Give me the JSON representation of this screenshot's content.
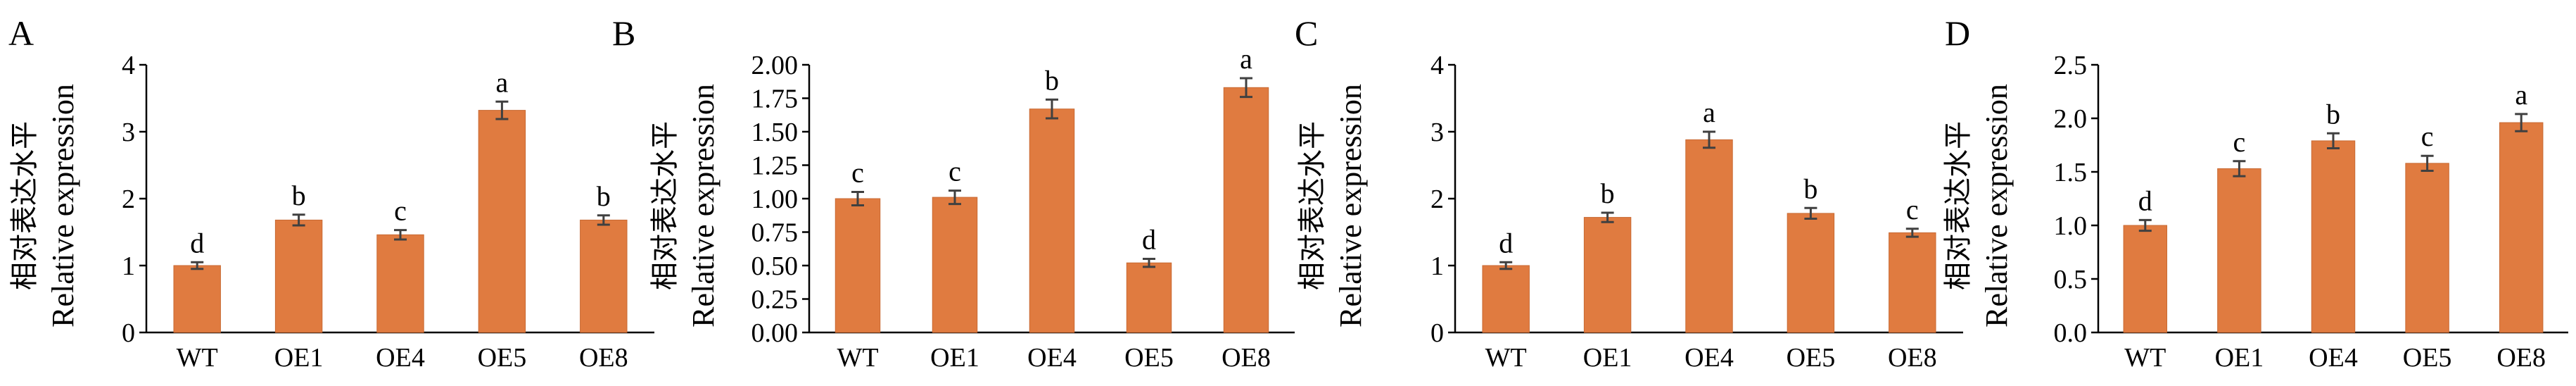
{
  "colors": {
    "bar": "#E07B40",
    "bar_edge": "#C86A33",
    "axis": "#000000",
    "error_bar": "#404040"
  },
  "chart_data": [
    {
      "panel": "A",
      "type": "bar",
      "ylabel_cn": "相对表达水平",
      "ylabel": "Relative expression",
      "categories": [
        "WT",
        "OE1",
        "OE4",
        "OE5",
        "OE8"
      ],
      "values": [
        1.0,
        1.68,
        1.46,
        3.32,
        1.68
      ],
      "errors": [
        0.05,
        0.08,
        0.07,
        0.13,
        0.07
      ],
      "significance": [
        "d",
        "b",
        "c",
        "a",
        "b"
      ],
      "ylim": [
        0,
        4
      ],
      "yticks": [
        "0",
        "1",
        "2",
        "3",
        "4"
      ],
      "grid": false
    },
    {
      "panel": "B",
      "type": "bar",
      "ylabel_cn": "相对表达水平",
      "ylabel": "Relative expression",
      "categories": [
        "WT",
        "OE1",
        "OE4",
        "OE5",
        "OE8"
      ],
      "values": [
        1.0,
        1.01,
        1.67,
        0.52,
        1.83
      ],
      "errors": [
        0.05,
        0.05,
        0.07,
        0.03,
        0.07
      ],
      "significance": [
        "c",
        "c",
        "b",
        "d",
        "a"
      ],
      "ylim": [
        0,
        2.0
      ],
      "yticks": [
        "0.00",
        "0.25",
        "0.50",
        "0.75",
        "1.00",
        "1.25",
        "1.50",
        "1.75",
        "2.00"
      ],
      "grid": false
    },
    {
      "panel": "C",
      "type": "bar",
      "ylabel_cn": "相对表达水平",
      "ylabel": "Relative expression",
      "categories": [
        "WT",
        "OE1",
        "OE4",
        "OE5",
        "OE8"
      ],
      "values": [
        1.0,
        1.72,
        2.88,
        1.78,
        1.49
      ],
      "errors": [
        0.05,
        0.07,
        0.12,
        0.08,
        0.06
      ],
      "significance": [
        "d",
        "b",
        "a",
        "b",
        "c"
      ],
      "ylim": [
        0,
        4
      ],
      "yticks": [
        "0",
        "1",
        "2",
        "3",
        "4"
      ],
      "grid": false
    },
    {
      "panel": "D",
      "type": "bar",
      "ylabel_cn": "相对表达水平",
      "ylabel": "Relative expression",
      "categories": [
        "WT",
        "OE1",
        "OE4",
        "OE5",
        "OE8"
      ],
      "values": [
        1.0,
        1.53,
        1.79,
        1.58,
        1.96
      ],
      "errors": [
        0.05,
        0.07,
        0.07,
        0.07,
        0.08
      ],
      "significance": [
        "d",
        "c",
        "b",
        "c",
        "a"
      ],
      "ylim": [
        0,
        2.5
      ],
      "yticks": [
        "0.0",
        "0.5",
        "1.0",
        "1.5",
        "2.0",
        "2.5"
      ],
      "grid": false
    }
  ]
}
